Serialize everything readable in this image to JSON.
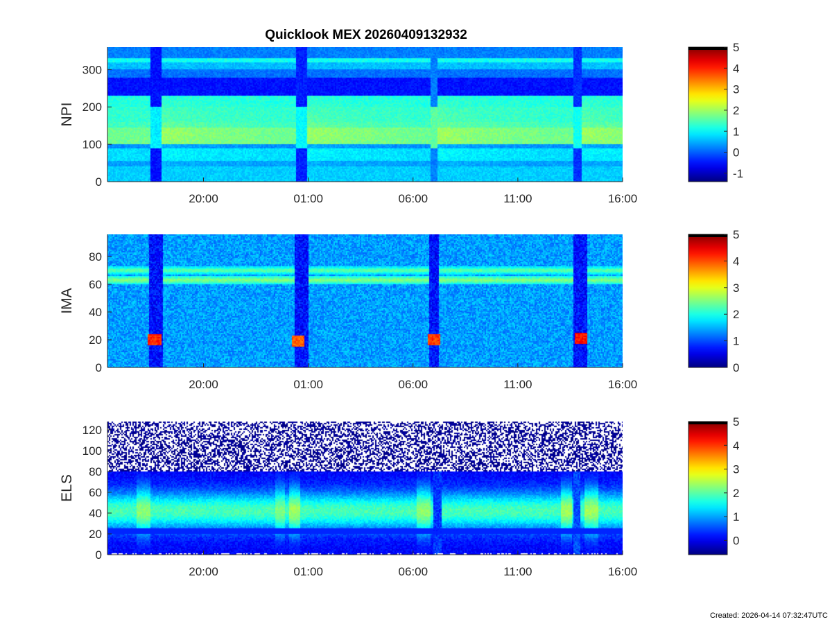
{
  "figure": {
    "title": "Quicklook MEX 20260409132932",
    "footer": "Created: 2026-04-14 07:32:47UTC"
  },
  "chart_data": [
    {
      "type": "heatmap",
      "ylabel": "NPI",
      "xlim": [
        "2026-04-09 15:25",
        "2026-04-10 16:00"
      ],
      "x_ticks": [
        "2026-04-09 20:00",
        "2026-04-10 01:00",
        "2026-04-10 06:00",
        "2026-04-10 11:00",
        "2026-04-10 16:00"
      ],
      "x_tick_labels": [
        "20:00",
        "01:00",
        "06:00",
        "11:00",
        "16:00"
      ],
      "ylim": [
        0,
        360
      ],
      "y_ticks": [
        0,
        100,
        200,
        300
      ],
      "colorbar": {
        "range": [
          -1.4,
          5
        ],
        "ticks": [
          -1,
          0,
          1,
          2,
          3,
          4,
          5
        ],
        "colormap": "jet"
      },
      "bands": [
        {
          "y": [
            0,
            40
          ],
          "level": 0.7
        },
        {
          "y": [
            40,
            55
          ],
          "level": 0.4
        },
        {
          "y": [
            55,
            90
          ],
          "level": 0.8
        },
        {
          "y": [
            90,
            100
          ],
          "level": 0.3
        },
        {
          "y": [
            100,
            145
          ],
          "level": 1.7
        },
        {
          "y": [
            145,
            160
          ],
          "level": 1.4
        },
        {
          "y": [
            160,
            200
          ],
          "level": 1.3
        },
        {
          "y": [
            200,
            230
          ],
          "level": 1.2
        },
        {
          "y": [
            230,
            280
          ],
          "level": -0.5
        },
        {
          "y": [
            280,
            300
          ],
          "level": 0.1
        },
        {
          "y": [
            300,
            320
          ],
          "level": 0.6
        },
        {
          "y": [
            320,
            330
          ],
          "level": 1.1
        },
        {
          "y": [
            330,
            360
          ],
          "level": 0.2
        }
      ],
      "dips": [
        {
          "time": "2026-04-09 17:45",
          "width_min": 30,
          "level": -0.5
        },
        {
          "time": "2026-04-10 00:40",
          "width_min": 30,
          "level": -0.4
        },
        {
          "time": "2026-04-10 07:00",
          "width_min": 20,
          "level": 0.2
        },
        {
          "time": "2026-04-10 13:50",
          "width_min": 25,
          "level": -0.3
        }
      ]
    },
    {
      "type": "heatmap",
      "ylabel": "IMA",
      "xlim": [
        "2026-04-09 15:25",
        "2026-04-10 16:00"
      ],
      "x_ticks": [
        "2026-04-09 20:00",
        "2026-04-10 01:00",
        "2026-04-10 06:00",
        "2026-04-10 11:00",
        "2026-04-10 16:00"
      ],
      "x_tick_labels": [
        "20:00",
        "01:00",
        "06:00",
        "11:00",
        "16:00"
      ],
      "ylim": [
        0,
        96
      ],
      "y_ticks": [
        0,
        20,
        40,
        60,
        80
      ],
      "colorbar": {
        "range": [
          0,
          5
        ],
        "ticks": [
          0,
          1,
          2,
          3,
          4,
          5
        ],
        "colormap": "jet"
      },
      "background_level": 1.4,
      "lines": [
        {
          "y": 63,
          "level": 2.6
        },
        {
          "y": 70,
          "level": 2.4
        }
      ],
      "gaps": [
        {
          "time": "2026-04-09 17:45",
          "width_min": 40
        },
        {
          "time": "2026-04-10 00:40",
          "width_min": 40
        },
        {
          "time": "2026-04-10 07:00",
          "width_min": 30
        },
        {
          "time": "2026-04-10 14:00",
          "width_min": 40
        }
      ],
      "low_energy_spots": [
        {
          "time": "2026-04-09 17:40",
          "y": 20,
          "level": 4.2
        },
        {
          "time": "2026-04-10 00:30",
          "y": 19,
          "level": 3.9
        },
        {
          "time": "2026-04-10 07:00",
          "y": 20,
          "level": 4.1
        },
        {
          "time": "2026-04-10 14:00",
          "y": 21,
          "level": 4.3
        }
      ]
    },
    {
      "type": "heatmap",
      "ylabel": "ELS",
      "xlim": [
        "2026-04-09 15:25",
        "2026-04-10 16:00"
      ],
      "x_ticks": [
        "2026-04-09 20:00",
        "2026-04-10 01:00",
        "2026-04-10 06:00",
        "2026-04-10 11:00",
        "2026-04-10 16:00"
      ],
      "x_tick_labels": [
        "20:00",
        "01:00",
        "06:00",
        "11:00",
        "16:00"
      ],
      "ylim": [
        0,
        128
      ],
      "y_ticks": [
        0,
        20,
        40,
        60,
        80,
        100,
        120
      ],
      "colorbar": {
        "range": [
          -0.6,
          5
        ],
        "ticks": [
          0,
          1,
          2,
          3,
          4,
          5
        ],
        "colormap": "jet"
      },
      "core": {
        "y": 42,
        "level": 1.8
      },
      "noise_above": 80,
      "features": [
        {
          "time": "2026-04-09 17:10",
          "width_min": 40,
          "level": 2.3
        },
        {
          "time": "2026-04-09 23:40",
          "width_min": 30,
          "level": 2.2
        },
        {
          "time": "2026-04-10 00:20",
          "width_min": 30,
          "level": 2.4
        },
        {
          "time": "2026-04-10 06:30",
          "width_min": 40,
          "level": 2.3
        },
        {
          "time": "2026-04-10 07:10",
          "width_min": 20,
          "level": 0.4
        },
        {
          "time": "2026-04-10 13:20",
          "width_min": 30,
          "level": 2.4
        },
        {
          "time": "2026-04-10 13:50",
          "width_min": 20,
          "level": 0.5
        },
        {
          "time": "2026-04-10 14:30",
          "width_min": 40,
          "level": 2.4
        }
      ]
    }
  ]
}
